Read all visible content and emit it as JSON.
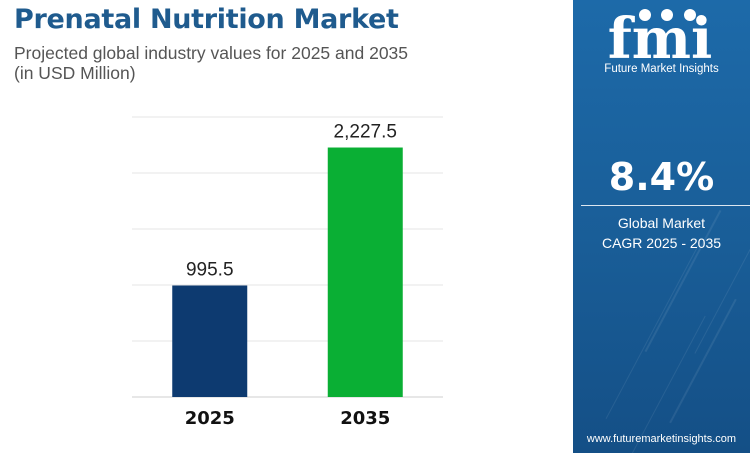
{
  "header": {
    "title": "Prenatal Nutrition Market",
    "subtitle_line1": "Projected global industry values for 2025 and 2035",
    "subtitle_line2": "(in USD Million)"
  },
  "chart_data": {
    "type": "bar",
    "categories": [
      "2025",
      "2035"
    ],
    "values": [
      995.5,
      2227.5
    ],
    "value_labels": [
      "995.5",
      "2,227.5"
    ],
    "bar_colors": [
      "#0d3a70",
      "#0aaf34"
    ],
    "ylim": [
      0,
      2500
    ],
    "grid": true,
    "legend": "none",
    "xlabel": "",
    "ylabel": ""
  },
  "side_panel": {
    "logo_text": "fmi",
    "logo_caption": "Future Market Insights",
    "cagr_value": "8.4%",
    "cagr_label_line1": "Global Market",
    "cagr_label_line2": "CAGR 2025 - 2035",
    "website": "www.futuremarketinsights.com",
    "background_color": "#1a63a0"
  }
}
